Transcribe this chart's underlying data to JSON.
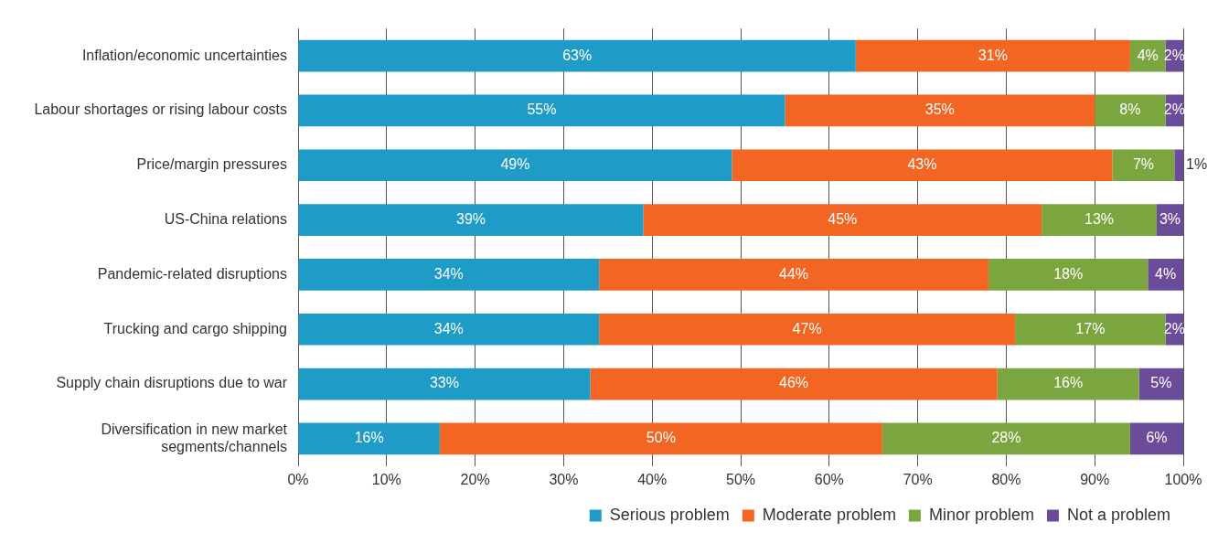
{
  "chart_data": {
    "type": "bar",
    "orientation": "horizontal",
    "stacked": true,
    "categories": [
      "Inflation/economic uncertainties",
      "Labour shortages or rising labour costs",
      "Price/margin pressures",
      "US-China relations",
      "Pandemic-related disruptions",
      "Trucking and cargo shipping",
      "Supply chain disruptions due to war",
      "Diversification in new market segments/channels"
    ],
    "series": [
      {
        "name": "Serious problem",
        "color": "#1f9bc7",
        "values": [
          63,
          55,
          49,
          39,
          34,
          34,
          33,
          16
        ],
        "value_labels": [
          "63%",
          "55%",
          "49%",
          "39%",
          "34%",
          "34%",
          "33%",
          "16%"
        ]
      },
      {
        "name": "Moderate problem",
        "color": "#f26522",
        "values": [
          31,
          35,
          43,
          45,
          44,
          47,
          46,
          50
        ],
        "value_labels": [
          "31%",
          "35%",
          "43%",
          "45%",
          "44%",
          "47%",
          "46%",
          "50%"
        ]
      },
      {
        "name": "Minor problem",
        "color": "#7ba63f",
        "values": [
          4,
          8,
          7,
          13,
          18,
          17,
          16,
          28
        ],
        "value_labels": [
          "4%",
          "8%",
          "7%",
          "13%",
          "18%",
          "17%",
          "16%",
          "28%"
        ]
      },
      {
        "name": "Not a problem",
        "color": "#6b4c9a",
        "values": [
          2,
          2,
          1,
          3,
          4,
          2,
          5,
          6
        ],
        "value_labels": [
          "2%",
          "2%",
          "1%",
          "3%",
          "4%",
          "2%",
          "5%",
          "6%"
        ]
      }
    ],
    "xlim": [
      0,
      100
    ],
    "xticks": [
      {
        "value": 0,
        "label": "0%"
      },
      {
        "value": 10,
        "label": "10%"
      },
      {
        "value": 20,
        "label": "20%"
      },
      {
        "value": 30,
        "label": "30%"
      },
      {
        "value": 40,
        "label": "40%"
      },
      {
        "value": 50,
        "label": "50%"
      },
      {
        "value": 60,
        "label": "60%"
      },
      {
        "value": 70,
        "label": "70%"
      },
      {
        "value": 80,
        "label": "80%"
      },
      {
        "value": 90,
        "label": "90%"
      },
      {
        "value": 100,
        "label": "100%"
      }
    ],
    "grid": "x",
    "legend": "bottom"
  }
}
